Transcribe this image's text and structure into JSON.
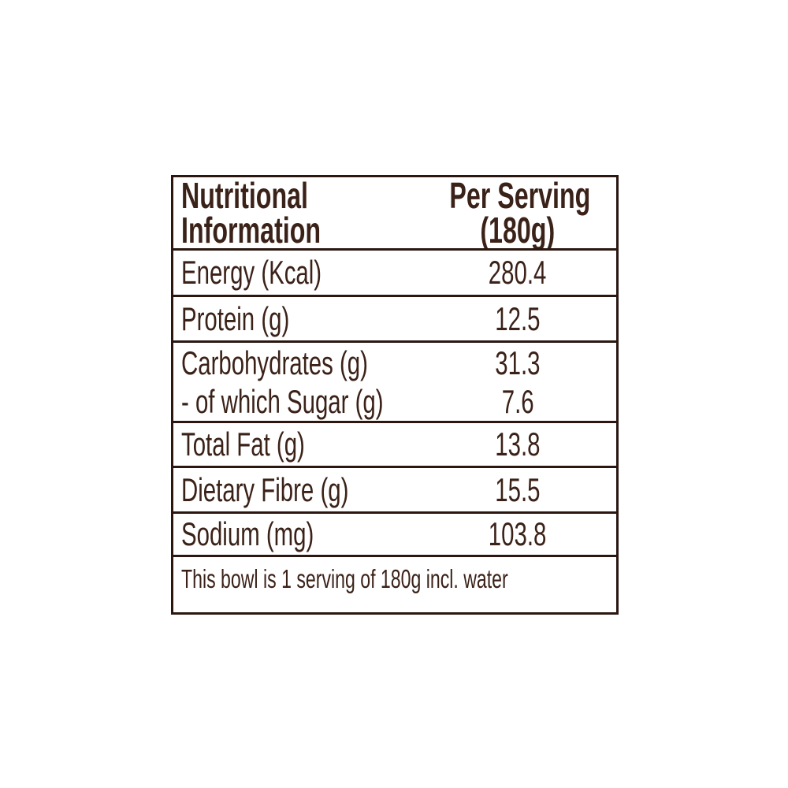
{
  "label": {
    "header": {
      "column1_line1": "Nutritional",
      "column1_line2": "Information",
      "column2_line1": "Per Serving",
      "column2_line2": "(180g)"
    },
    "rows": [
      {
        "name": "Energy (Kcal)",
        "value": "280.4"
      },
      {
        "name": "Protein (g)",
        "value": "12.5"
      },
      {
        "name": "Carbohydrates (g)",
        "value": "31.3"
      },
      {
        "name": "- of which Sugar (g)",
        "value": "7.6"
      },
      {
        "name": "Total Fat (g)",
        "value": "13.8"
      },
      {
        "name": "Dietary Fibre (g)",
        "value": "15.5"
      },
      {
        "name": "Sodium (mg)",
        "value": "103.8"
      }
    ],
    "footnote": "This bowl is 1 serving of 180g incl. water",
    "colors": {
      "text": "#3b2219",
      "border": "#2b1710",
      "background": "#ffffff"
    }
  }
}
